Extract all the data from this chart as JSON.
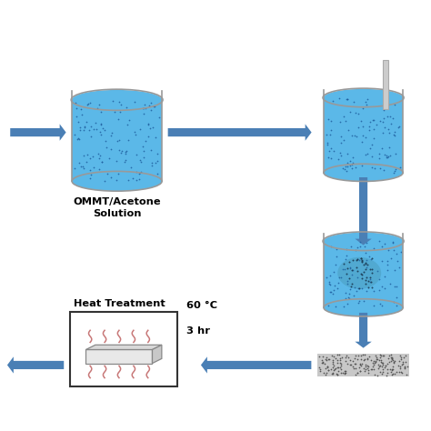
{
  "background_color": "#ffffff",
  "arrow_color": "#4A7FB5",
  "beaker_fill_color": "#5BB8E8",
  "beaker_fill_light": "#85CEEE",
  "beaker_edge_color": "#999999",
  "beaker_dot_color": "#2060A0",
  "text_color": "#000000",
  "heat_wave_color": "#C87878",
  "labels": {
    "solution": "OMMT/Acetone\nSolution",
    "heat_treatment": "Heat Treatment",
    "temp": "60 °C",
    "time": "3 hr"
  }
}
